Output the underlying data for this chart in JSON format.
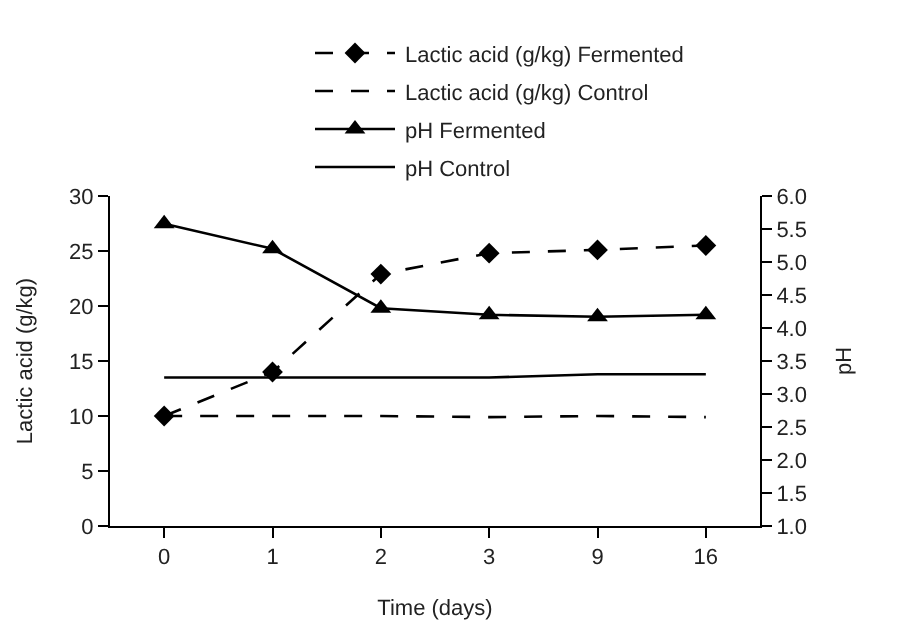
{
  "chart_data": {
    "type": "line",
    "xlabel": "Time (days)",
    "ylabel": "Lactic acid (g/kg)",
    "y2label": "pH",
    "categories": [
      "0",
      "1",
      "2",
      "3",
      "9",
      "16"
    ],
    "series": [
      {
        "name": "Lactic acid (g/kg) Fermented",
        "color": "#000000",
        "marker": "diamond",
        "line_style": "dashed",
        "values": [
          10,
          14,
          22.9,
          24.8,
          25.1,
          25.5
        ]
      },
      {
        "name": "Lactic acid (g/kg) Control",
        "color": "#000000",
        "marker": "none",
        "line_style": "dashed",
        "values": [
          10,
          10,
          10,
          9.9,
          10,
          9.9
        ]
      },
      {
        "name": "pH Fermented",
        "color": "#000000",
        "marker": "triangle",
        "line_style": "solid",
        "axis": "y2",
        "values": [
          5.58,
          5.2,
          4.3,
          4.2,
          4.17,
          4.2
        ]
      },
      {
        "name": "pH Control",
        "color": "#000000",
        "marker": "none",
        "line_style": "solid",
        "axis": "y2",
        "values": [
          3.25,
          3.25,
          3.25,
          3.25,
          3.3,
          3.3
        ]
      }
    ],
    "ylim": [
      0,
      30
    ],
    "yticks": [
      0,
      5,
      10,
      15,
      20,
      25,
      30
    ],
    "y2lim": [
      1.0,
      6.0
    ],
    "y2ticks": [
      {
        "value": 1.0,
        "label": "1.0"
      },
      1.5,
      {
        "value": 2.0,
        "label": "2.0"
      },
      2.5,
      {
        "value": 3.0,
        "label": "3.0"
      },
      3.5,
      {
        "value": 4.0,
        "label": "4.0"
      },
      4.5,
      {
        "value": 5.0,
        "label": "5.0"
      },
      5.5,
      {
        "value": 6.0,
        "label": "6.0"
      }
    ],
    "legend": "top"
  }
}
